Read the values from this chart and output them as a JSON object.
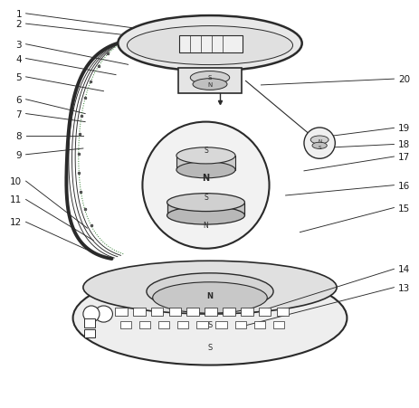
{
  "line_color": "#2a2a2a",
  "green_color": "#2a7a2a",
  "label_color": "#1a1a1a",
  "label_fs": 7.5,
  "left_labels": {
    "1": [
      0.045,
      0.965,
      0.42,
      0.915
    ],
    "2": [
      0.045,
      0.94,
      0.4,
      0.9
    ],
    "3": [
      0.045,
      0.89,
      0.3,
      0.84
    ],
    "4": [
      0.045,
      0.855,
      0.27,
      0.815
    ],
    "5": [
      0.045,
      0.81,
      0.24,
      0.775
    ],
    "6": [
      0.045,
      0.755,
      0.195,
      0.72
    ],
    "7": [
      0.045,
      0.72,
      0.195,
      0.7
    ],
    "8": [
      0.045,
      0.665,
      0.19,
      0.665
    ],
    "9": [
      0.045,
      0.62,
      0.19,
      0.635
    ],
    "10": [
      0.045,
      0.555,
      0.2,
      0.44
    ],
    "11": [
      0.045,
      0.51,
      0.215,
      0.41
    ],
    "12": [
      0.045,
      0.455,
      0.215,
      0.38
    ]
  },
  "right_labels": {
    "13": [
      0.955,
      0.295,
      0.58,
      0.2
    ],
    "14": [
      0.955,
      0.34,
      0.6,
      0.23
    ],
    "15": [
      0.955,
      0.49,
      0.72,
      0.43
    ],
    "16": [
      0.955,
      0.545,
      0.685,
      0.52
    ],
    "17": [
      0.955,
      0.615,
      0.73,
      0.58
    ],
    "18": [
      0.955,
      0.645,
      0.75,
      0.635
    ],
    "19": [
      0.955,
      0.685,
      0.755,
      0.66
    ],
    "20": [
      0.955,
      0.805,
      0.625,
      0.79
    ]
  }
}
